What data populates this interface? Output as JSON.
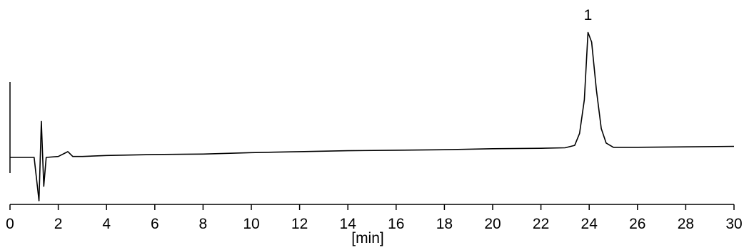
{
  "chart_data": {
    "type": "line",
    "title": "",
    "xlabel": "[min]",
    "ylabel": "",
    "xlim": [
      0,
      30
    ],
    "xticks": [
      0,
      2,
      4,
      6,
      8,
      10,
      12,
      14,
      16,
      18,
      20,
      22,
      24,
      26,
      28,
      30
    ],
    "grid": false,
    "legend": "none",
    "line_color": "#000000",
    "series": [
      {
        "x": [
          0.0,
          1.0,
          1.2,
          1.3,
          1.4,
          1.5,
          2.0,
          2.4,
          2.6,
          3.0,
          4.0,
          6.0,
          8.0,
          10.0,
          12.0,
          14.0,
          16.0,
          18.0,
          20.0,
          22.0,
          23.0,
          23.4,
          23.6,
          23.8,
          23.95,
          24.1,
          24.3,
          24.5,
          24.7,
          25.0,
          26.0,
          28.0,
          30.0
        ],
        "y": [
          0.0,
          0.0,
          -0.9,
          0.75,
          -0.6,
          0.0,
          0.02,
          0.12,
          0.02,
          0.02,
          0.04,
          0.06,
          0.07,
          0.1,
          0.12,
          0.14,
          0.15,
          0.16,
          0.18,
          0.19,
          0.2,
          0.25,
          0.5,
          1.2,
          2.6,
          2.4,
          1.4,
          0.6,
          0.3,
          0.21,
          0.21,
          0.22,
          0.23
        ]
      }
    ],
    "annotations": [
      {
        "text": "1",
        "x": 23.95
      }
    ]
  }
}
